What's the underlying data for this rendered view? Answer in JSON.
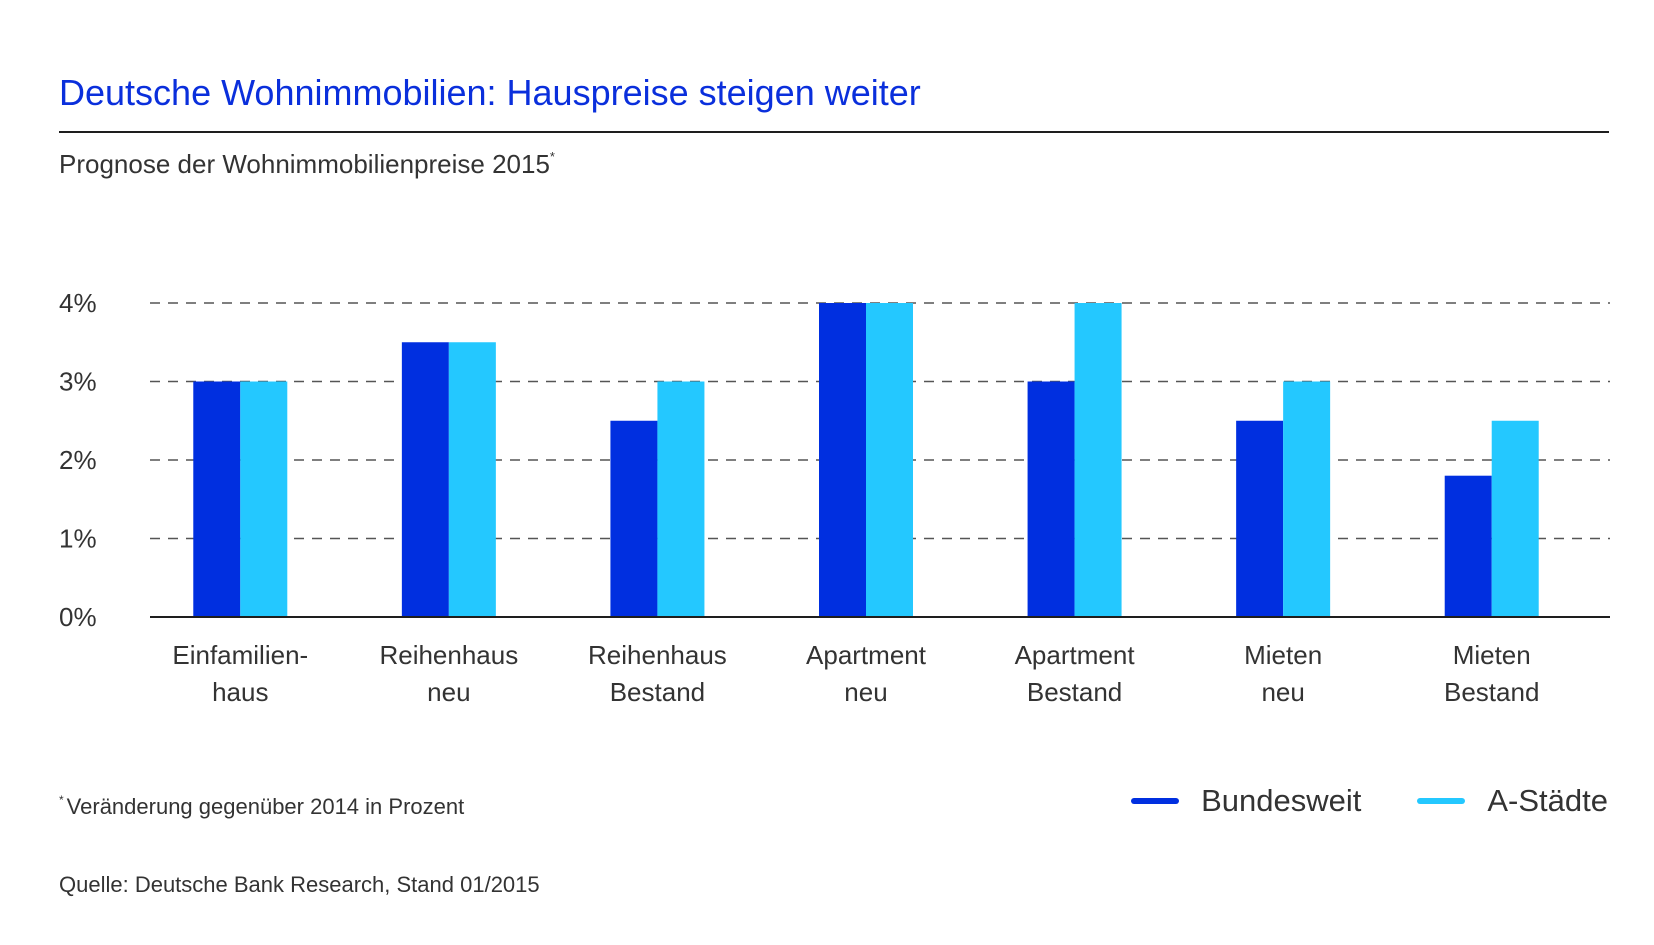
{
  "header": {
    "title": "Deutsche Wohnimmobilien: Hauspreise steigen weiter",
    "subtitle": "Prognose der Wohnimmobilienpreise 2015",
    "subtitle_marker": "*"
  },
  "footer": {
    "footnote_marker": "*",
    "footnote": "Veränderung gegenüber 2014 in Prozent",
    "source": "Quelle: Deutsche Bank Research, Stand 01/2015"
  },
  "legend": {
    "items": [
      {
        "label": "Bundesweit",
        "color": "#002fe0"
      },
      {
        "label": "A-Städte",
        "color": "#24c8ff"
      }
    ]
  },
  "chart_data": {
    "type": "bar",
    "title": "Deutsche Wohnimmobilien: Hauspreise steigen weiter",
    "subtitle": "Prognose der Wohnimmobilienpreise 2015*",
    "categories": [
      [
        "Einfamilien-",
        "haus"
      ],
      [
        "Reihenhaus",
        "neu"
      ],
      [
        "Reihenhaus",
        "Bestand"
      ],
      [
        "Apartment",
        "neu"
      ],
      [
        "Apartment",
        "Bestand"
      ],
      [
        "Mieten",
        "neu"
      ],
      [
        "Mieten",
        "Bestand"
      ]
    ],
    "series": [
      {
        "name": "Bundesweit",
        "color": "#002fe0",
        "values": [
          3.0,
          3.5,
          2.5,
          4.0,
          3.0,
          2.5,
          1.8
        ]
      },
      {
        "name": "A-Städte",
        "color": "#24c8ff",
        "values": [
          3.0,
          3.5,
          3.0,
          4.0,
          4.0,
          3.0,
          2.5
        ]
      }
    ],
    "yticks": [
      0,
      1,
      2,
      3,
      4
    ],
    "ytick_labels": [
      "0%",
      "1%",
      "2%",
      "3%",
      "4%"
    ],
    "ylim": [
      0,
      4
    ],
    "xlabel": "",
    "ylabel": "",
    "grid": true,
    "legend_position": "bottom-right"
  }
}
